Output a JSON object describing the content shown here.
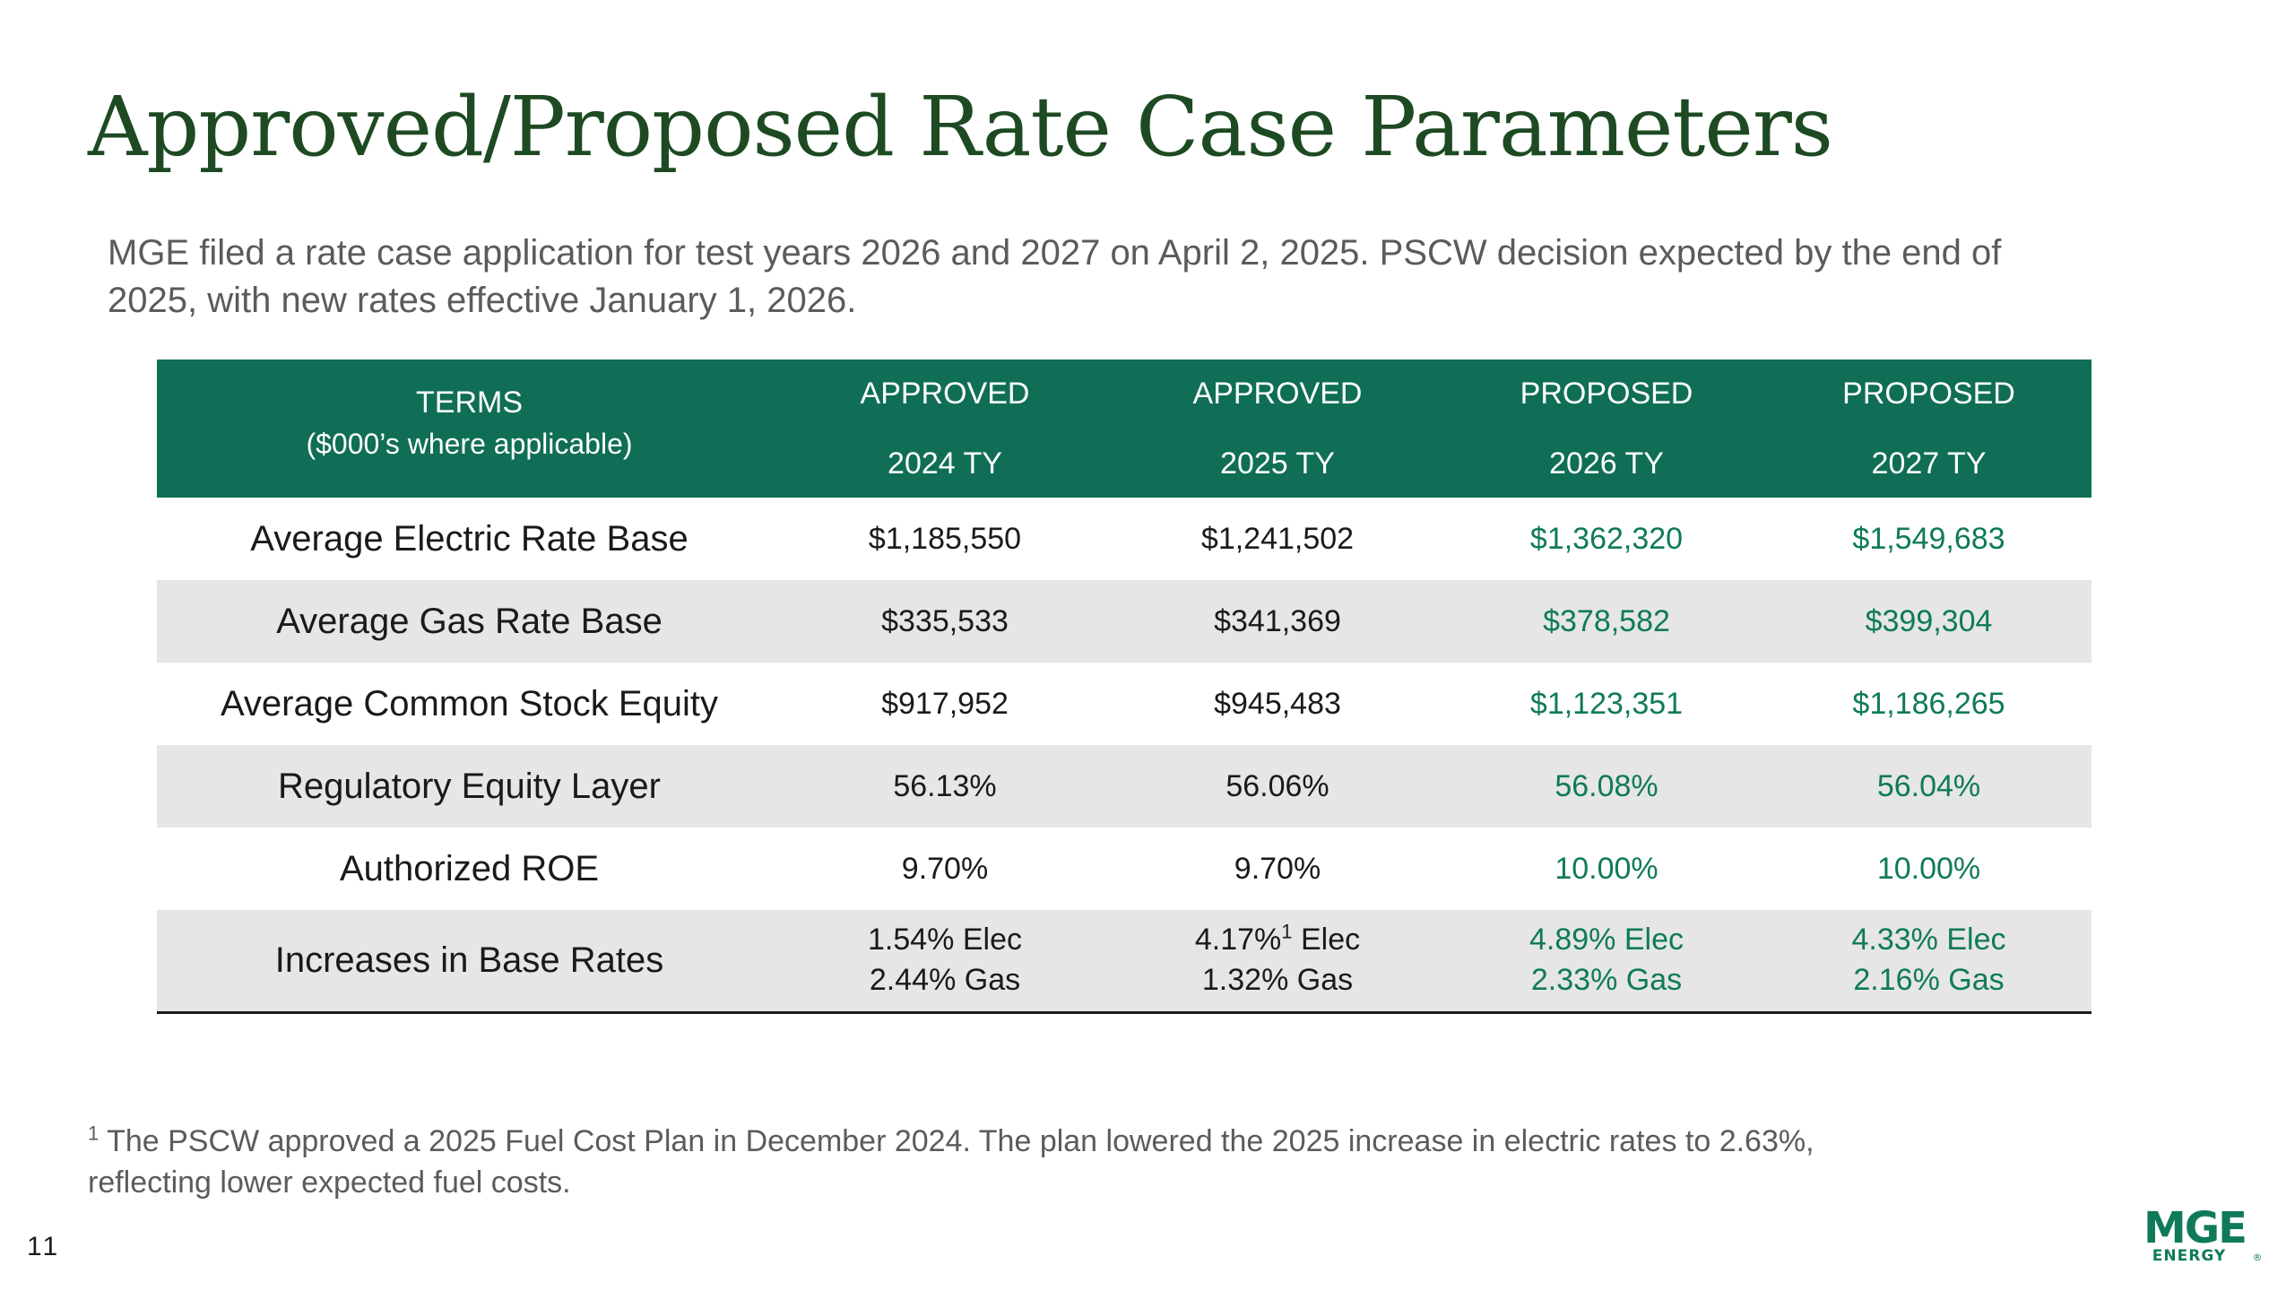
{
  "title": "Approved/Proposed Rate Case Parameters",
  "subtitle": "MGE filed a rate case application for test years 2026 and 2027 on April 2, 2025. PSCW decision expected by the end of 2025, with new rates effective January 1, 2026.",
  "table": {
    "header": {
      "terms_line1": "TERMS",
      "terms_line2": "($000’s where applicable)",
      "columns": [
        {
          "status": "APPROVED",
          "year": "2024 TY"
        },
        {
          "status": "APPROVED",
          "year": "2025 TY"
        },
        {
          "status": "PROPOSED",
          "year": "2026 TY"
        },
        {
          "status": "PROPOSED",
          "year": "2027 TY"
        }
      ]
    },
    "rows": [
      {
        "label": "Average Electric Rate Base",
        "values": [
          "$1,185,550",
          "$1,241,502",
          "$1,362,320",
          "$1,549,683"
        ]
      },
      {
        "label": "Average Gas Rate Base",
        "values": [
          "$335,533",
          "$341,369",
          "$378,582",
          "$399,304"
        ]
      },
      {
        "label": "Average Common Stock Equity",
        "values": [
          "$917,952",
          "$945,483",
          "$1,123,351",
          "$1,186,265"
        ]
      },
      {
        "label": "Regulatory Equity Layer",
        "values": [
          "56.13%",
          "56.06%",
          "56.08%",
          "56.04%"
        ]
      },
      {
        "label": "Authorized ROE",
        "values": [
          "9.70%",
          "9.70%",
          "10.00%",
          "10.00%"
        ]
      }
    ],
    "last_row": {
      "label": "Increases in Base Rates",
      "cells": [
        {
          "line1": "1.54% Elec",
          "line2": "2.44% Gas"
        },
        {
          "line1_value": "4.17%",
          "line1_sup": "1",
          "line1_suffix": " Elec",
          "line2": "1.32% Gas"
        },
        {
          "line1": "4.89% Elec",
          "line2": "2.33% Gas"
        },
        {
          "line1": "4.33% Elec",
          "line2": "2.16% Gas"
        }
      ]
    }
  },
  "footnote": {
    "marker": "1",
    "line1": "The PSCW approved a 2025 Fuel Cost Plan in December 2024. The plan lowered the 2025 increase in electric rates to 2.63%,",
    "line2": "reflecting lower expected fuel costs."
  },
  "page_number": "11",
  "logo": {
    "top": "MGE",
    "bottom": "ENERGY",
    "mark": "®"
  },
  "colors": {
    "title": "#1d4a22",
    "header_bg": "#0f6e55",
    "proposed_text": "#0f7a5a",
    "shaded_row": "#e6e6e6",
    "logo": "#0f7a5a"
  }
}
